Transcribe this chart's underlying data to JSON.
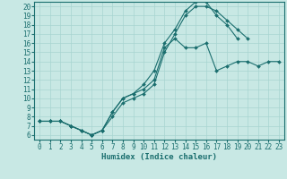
{
  "xlabel": "Humidex (Indice chaleur)",
  "background_color": "#c8e8e4",
  "line_color": "#1a6e6e",
  "grid_color": "#a8d4d0",
  "xlim": [
    -0.5,
    23.5
  ],
  "ylim": [
    5.5,
    20.5
  ],
  "xticks": [
    0,
    1,
    2,
    3,
    4,
    5,
    6,
    7,
    8,
    9,
    10,
    11,
    12,
    13,
    14,
    15,
    16,
    17,
    18,
    19,
    20,
    21,
    22,
    23
  ],
  "yticks": [
    6,
    7,
    8,
    9,
    10,
    11,
    12,
    13,
    14,
    15,
    16,
    17,
    18,
    19,
    20
  ],
  "lines": [
    {
      "x": [
        0,
        1,
        2,
        3,
        4,
        5,
        6,
        7,
        8,
        9,
        10,
        11,
        12,
        13,
        14,
        15,
        16,
        17,
        18,
        19,
        20,
        21,
        22,
        23
      ],
      "y": [
        7.5,
        7.5,
        7.5,
        7.0,
        6.5,
        6.0,
        6.5,
        8.5,
        10.0,
        10.5,
        11.0,
        12.0,
        15.5,
        16.5,
        15.5,
        15.5,
        16.0,
        13.0,
        13.5,
        14.0,
        14.0,
        13.5,
        14.0,
        14.0
      ]
    },
    {
      "x": [
        0,
        1,
        2,
        3,
        4,
        5,
        6,
        7,
        8,
        9,
        10,
        11,
        12,
        13,
        14,
        15,
        16,
        17,
        18,
        19,
        20
      ],
      "y": [
        7.5,
        7.5,
        7.5,
        7.0,
        6.5,
        6.0,
        6.5,
        8.0,
        9.5,
        10.0,
        10.5,
        11.5,
        15.0,
        17.0,
        19.0,
        20.0,
        20.0,
        19.5,
        18.5,
        17.5,
        16.5
      ]
    },
    {
      "x": [
        0,
        1,
        2,
        3,
        4,
        5,
        6,
        7,
        8,
        9,
        10,
        11,
        12,
        13,
        14,
        15,
        16,
        17,
        18,
        19
      ],
      "y": [
        7.5,
        7.5,
        7.5,
        7.0,
        6.5,
        6.0,
        6.5,
        8.5,
        10.0,
        10.5,
        11.5,
        13.0,
        16.0,
        17.5,
        19.5,
        20.5,
        20.5,
        19.0,
        18.0,
        16.5
      ]
    }
  ],
  "tick_fontsize": 5.5,
  "xlabel_fontsize": 6.5,
  "linewidth": 0.8,
  "markersize": 2.0
}
